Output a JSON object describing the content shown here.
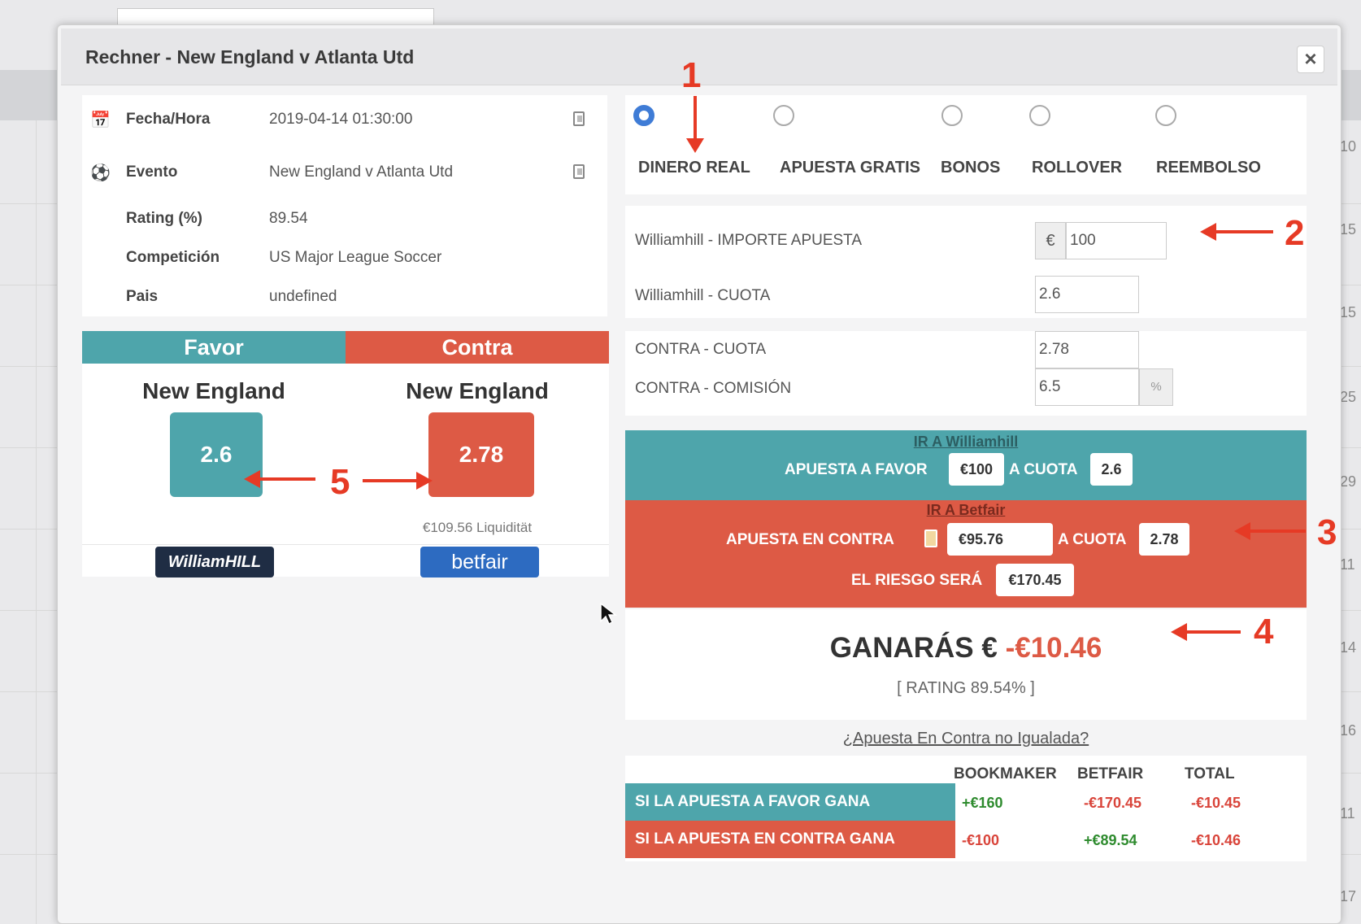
{
  "modal": {
    "title": "Rechner - New England v Atlanta Utd",
    "close_label": "×"
  },
  "info": [
    {
      "icon": "calendar-icon",
      "glyph": "📅",
      "label": "Fecha/Hora",
      "value": "2019-04-14 01:30:00"
    },
    {
      "icon": "soccer-ball-icon",
      "glyph": "⚽",
      "label": "Evento",
      "value": "New England v Atlanta Utd"
    },
    {
      "icon": "",
      "glyph": "",
      "label": "Rating (%)",
      "value": "89.54"
    },
    {
      "icon": "",
      "glyph": "",
      "label": "Competición",
      "value": "US Major League Soccer"
    },
    {
      "icon": "",
      "glyph": "",
      "label": "Pais",
      "value": "undefined"
    }
  ],
  "favor": {
    "header": "Favor",
    "team": "New England",
    "odds": "2.6",
    "logo": "WilliamHILL",
    "color": "#4ea5ab"
  },
  "contra": {
    "header": "Contra",
    "team": "New England",
    "odds": "2.78",
    "liquidity": "€109.56 Liquidität",
    "logo": "betfair",
    "color": "#dd5a45"
  },
  "bet_types": [
    {
      "label": "DINERO REAL",
      "selected": true
    },
    {
      "label": "APUESTA GRATIS",
      "selected": false
    },
    {
      "label": "BONOS",
      "selected": false
    },
    {
      "label": "ROLLOVER",
      "selected": false
    },
    {
      "label": "REEMBOLSO",
      "selected": false
    }
  ],
  "form": {
    "stake_label": "Williamhill - IMPORTE APUESTA",
    "currency": "€",
    "stake_value": "100",
    "odds_label": "Williamhill - CUOTA",
    "odds_value": "2.6",
    "lay_odds_label": "CONTRA - CUOTA",
    "lay_odds_value": "2.78",
    "commission_label": "CONTRA - COMISIÓN",
    "commission_value": "6.5",
    "percent": "%"
  },
  "back_panel": {
    "link": "IR A Williamhill",
    "text1": "APUESTA A FAVOR",
    "stake": "€100",
    "text2": "A CUOTA",
    "odds": "2.6"
  },
  "lay_panel": {
    "link": "IR A Betfair",
    "text1": "APUESTA EN CONTRA",
    "stake": "€95.76",
    "text2": "A CUOTA",
    "odds": "2.78",
    "risk_text": "EL RIESGO SERÁ",
    "risk": "€170.45"
  },
  "result": {
    "prefix": "GANARÁS €",
    "amount": "-€10.46",
    "rating": "[ RATING 89.54% ]"
  },
  "unmatched_link": "¿Apuesta En Contra no Igualada?",
  "outcome_table": {
    "headers": [
      "BOOKMAKER",
      "BETFAIR",
      "TOTAL"
    ],
    "rows": [
      {
        "label": "SI LA APUESTA A FAVOR GANA",
        "bookmaker": "+€160",
        "betfair": "-€170.45",
        "total": "-€10.45"
      },
      {
        "label": "SI LA APUESTA EN CONTRA GANA",
        "bookmaker": "-€100",
        "betfair": "+€89.54",
        "total": "-€10.46"
      }
    ]
  },
  "annotations": [
    "1",
    "2",
    "3",
    "4",
    "5"
  ],
  "background_numbers": [
    "10",
    "15",
    "15",
    "25",
    "29",
    "11",
    "14",
    "16",
    "11",
    "17"
  ],
  "colors": {
    "teal": "#4ea5ab",
    "red": "#dd5a45",
    "radio_selected": "#3f7cd6",
    "annotation": "#e63a25",
    "positive": "#2e8b2e",
    "negative": "#d9443a"
  }
}
